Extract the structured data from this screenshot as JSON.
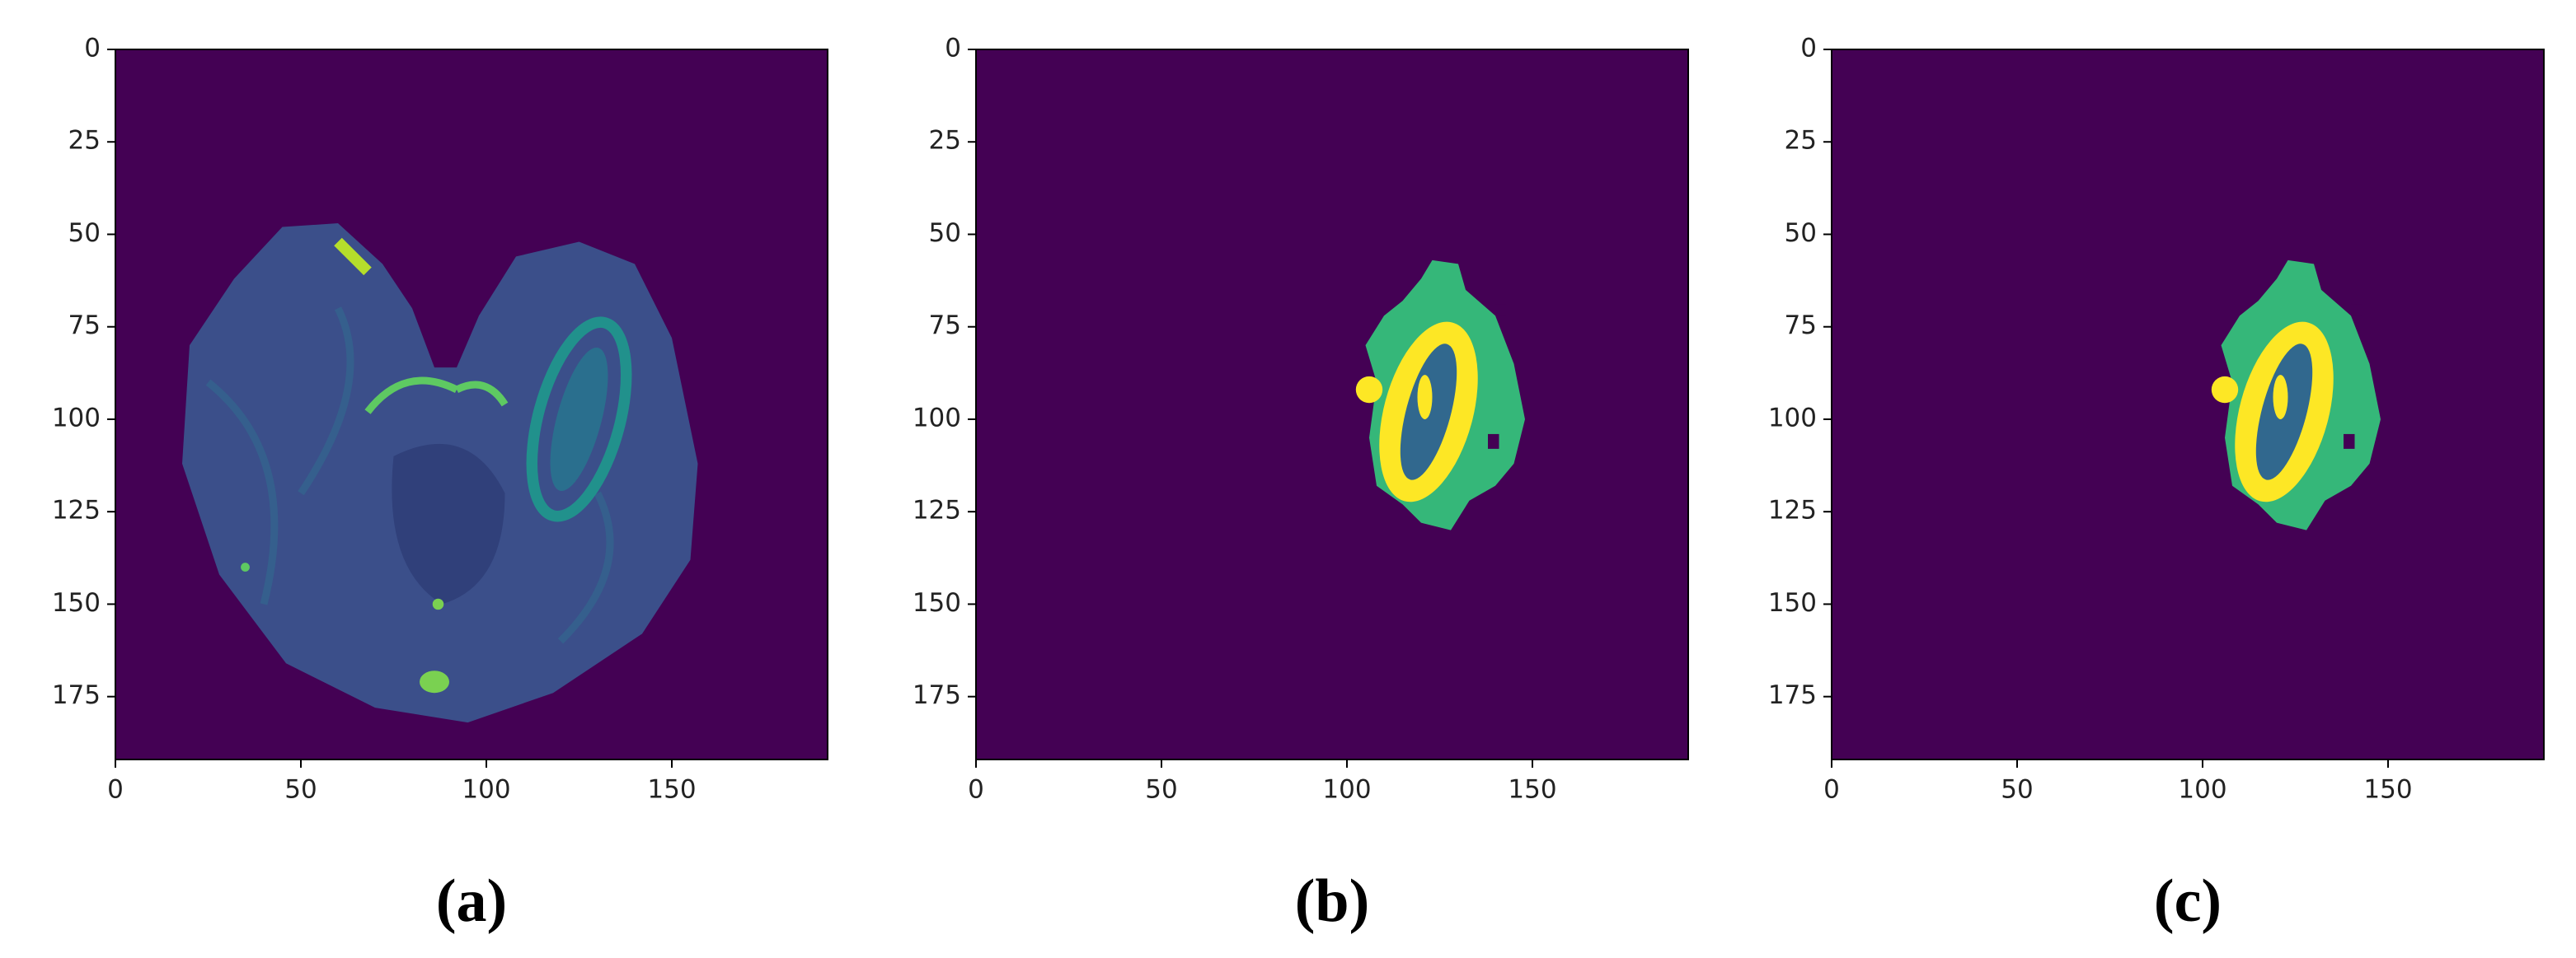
{
  "chart_data": [
    {
      "type": "image",
      "caption": "(a)",
      "image": "brain",
      "xlim": [
        0,
        192
      ],
      "ylim": [
        192,
        0
      ],
      "xticks": [
        0,
        50,
        100,
        150
      ],
      "yticks": [
        0,
        25,
        50,
        75,
        100,
        125,
        150,
        175
      ]
    },
    {
      "type": "image",
      "caption": "(b)",
      "image": "tumor",
      "xlim": [
        0,
        192
      ],
      "ylim": [
        192,
        0
      ],
      "xticks": [
        0,
        50,
        100,
        150
      ],
      "yticks": [
        0,
        25,
        50,
        75,
        100,
        125,
        150,
        175
      ]
    },
    {
      "type": "image",
      "caption": "(c)",
      "image": "tumor",
      "xlim": [
        0,
        192
      ],
      "ylim": [
        192,
        0
      ],
      "xticks": [
        0,
        50,
        100,
        150
      ],
      "yticks": [
        0,
        25,
        50,
        75,
        100,
        125,
        150,
        175
      ]
    }
  ]
}
